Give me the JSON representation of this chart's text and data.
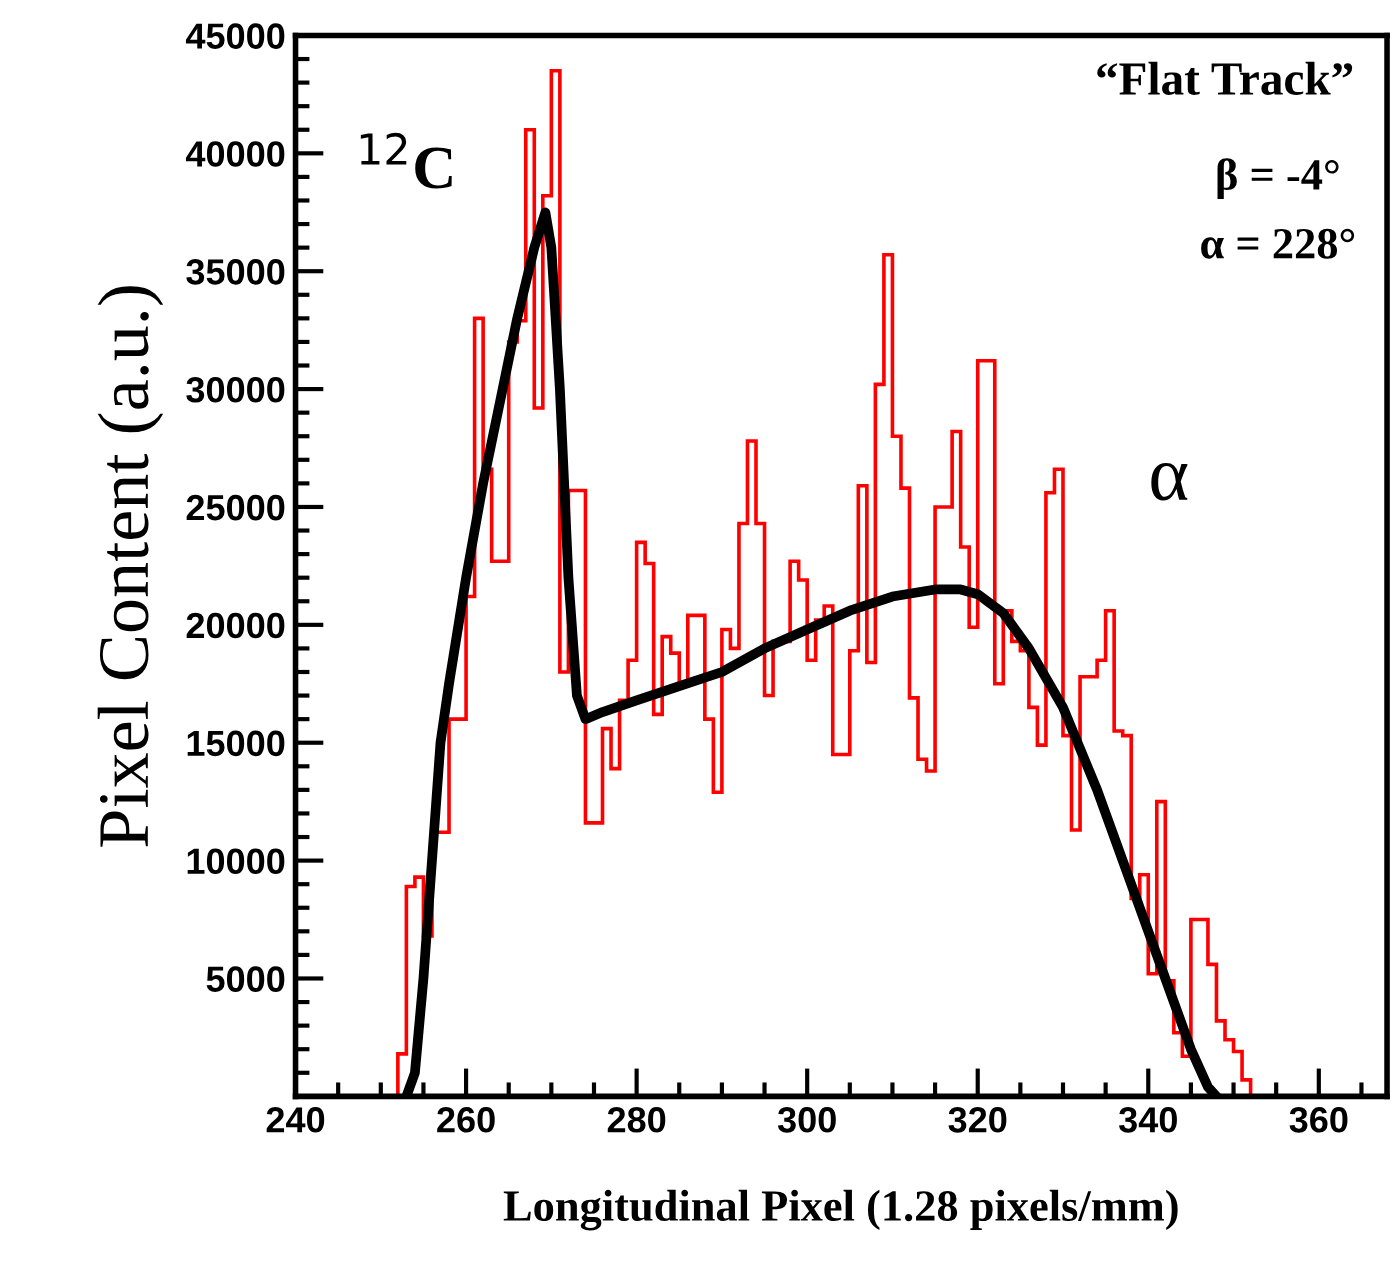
{
  "chart_data": {
    "type": "histogram",
    "xlabel": "Longitudinal Pixel (1.28 pixels/mm)",
    "ylabel": "Pixel Content (a.u.)",
    "annotations": [
      "$^{12}$C",
      "“Flat Track”",
      "β = -4°",
      "α = 228°",
      "α"
    ],
    "bins": [
      252,
      253,
      254,
      255,
      256,
      257,
      258,
      259,
      260,
      261,
      262,
      263,
      264,
      265,
      266,
      267,
      268,
      269,
      270,
      271,
      272,
      273,
      274,
      275,
      276,
      277,
      278,
      279,
      280,
      281,
      282,
      283,
      284,
      285,
      286,
      287,
      288,
      289,
      290,
      291,
      292,
      293,
      294,
      295,
      296,
      297,
      298,
      299,
      300,
      301,
      302,
      303,
      304,
      305,
      306,
      307,
      308,
      309,
      310,
      311,
      312,
      313,
      314,
      315,
      316,
      317,
      318,
      319,
      320,
      321,
      322,
      323,
      324,
      325,
      326,
      327,
      328,
      329,
      330,
      331,
      332,
      333,
      334,
      335,
      336,
      337,
      338,
      339,
      340,
      341,
      342,
      343,
      344,
      345,
      346,
      347,
      348,
      349,
      350,
      351,
      352
    ],
    "values": [
      1800,
      8900,
      9300,
      6800,
      11200,
      11200,
      16000,
      16000,
      21200,
      33000,
      26600,
      22700,
      22700,
      32000,
      32900,
      41000,
      29200,
      38200,
      43500,
      18000,
      25700,
      25700,
      11600,
      11600,
      15600,
      13900,
      16800,
      18500,
      23500,
      22600,
      16200,
      19500,
      18800,
      17500,
      20400,
      20400,
      16000,
      12900,
      19800,
      19000,
      24300,
      27800,
      24300,
      17000,
      19300,
      19300,
      22700,
      21900,
      18500,
      20200,
      20800,
      14500,
      14500,
      18900,
      25900,
      18400,
      30200,
      35700,
      28000,
      25800,
      16900,
      14300,
      13800,
      25000,
      25000,
      28200,
      23300,
      19900,
      31200,
      31200,
      17500,
      20600,
      19300,
      18900,
      16500,
      14900,
      25600,
      26600,
      15300,
      11300,
      17800,
      17800,
      18500,
      20600,
      15500,
      15300,
      8400,
      9400,
      5200,
      12500,
      4900,
      2700,
      1700,
      7500,
      7500,
      5600,
      3200,
      2400,
      1900,
      700
    ],
    "color": "#ff0000",
    "series": [
      {
        "type": "line",
        "color": "#000000",
        "x": [
          253,
          254,
          255,
          256,
          257,
          258,
          260,
          262,
          264,
          266,
          268,
          269.3,
          270,
          271,
          272,
          273,
          274,
          276,
          280,
          285,
          290,
          295,
          300,
          305,
          310,
          315,
          318,
          320,
          323,
          326,
          330,
          334,
          338,
          342,
          345,
          347,
          348
        ],
        "values": [
          0,
          1000,
          5000,
          10000,
          15000,
          17500,
          22000,
          26000,
          29500,
          33000,
          36000,
          37500,
          36000,
          30000,
          22000,
          17000,
          16000,
          16300,
          16800,
          17400,
          18000,
          19000,
          19800,
          20600,
          21200,
          21500,
          21500,
          21300,
          20500,
          19000,
          16500,
          13000,
          9000,
          5000,
          2000,
          400,
          0
        ]
      }
    ],
    "xlim": [
      240,
      368
    ],
    "xticks": [
      240,
      260,
      280,
      300,
      320,
      340,
      360
    ],
    "ylim": [
      0,
      45000
    ],
    "yticks": [
      5000,
      10000,
      15000,
      20000,
      25000,
      30000,
      35000,
      40000,
      45000
    ],
    "grid": false,
    "legend": false
  }
}
